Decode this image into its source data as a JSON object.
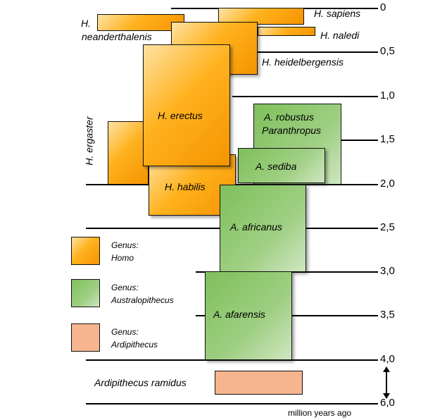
{
  "timeline": {
    "ticks": [
      {
        "label": "0"
      },
      {
        "label": "0,5"
      },
      {
        "label": "1,0"
      },
      {
        "label": "1,5"
      },
      {
        "label": "2,0"
      },
      {
        "label": "2,5"
      },
      {
        "label": "3,0"
      },
      {
        "label": "3,5"
      },
      {
        "label": "4,0"
      },
      {
        "label": "6,0"
      }
    ],
    "unit_label": "million  years ago"
  },
  "species": {
    "sapiens": "H. sapiens",
    "neanderthalensis_1": "H.",
    "neanderthalensis_2": "neanderthalenis",
    "naledi": "H. naledi",
    "heidelbergensis": "H. heidelbergensis",
    "erectus": "H. erectus",
    "ergaster": "H. ergaster",
    "habilis": "H. habilis",
    "robustus_1": "A.  robustus",
    "robustus_2": "Paranthropus",
    "sediba": "A. sediba",
    "africanus": "A. africanus",
    "afarensis": "A. afarensis",
    "ramidus": "Ardipithecus ramidus"
  },
  "legend": [
    {
      "line1": "Genus:",
      "line2": "Homo",
      "color": "#ffb21e"
    },
    {
      "line1": "Genus:",
      "line2": "Australopithecus",
      "color": "#8cc56c"
    },
    {
      "line1": "Genus:",
      "line2": "Ardipithecus",
      "color": "#f6b58e"
    }
  ]
}
